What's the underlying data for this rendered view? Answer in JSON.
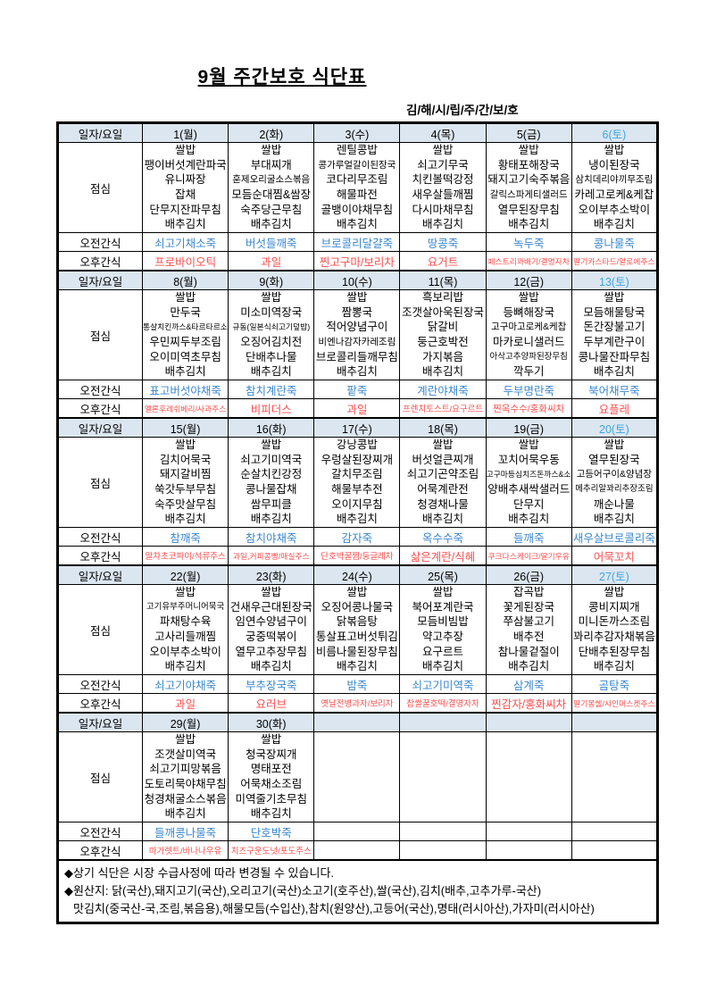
{
  "title": "9월 주간보호 식단표",
  "subtitle": "김/해/시/립/주/간/보/호",
  "row_labels": {
    "date": "일자/요일",
    "lunch": "점심",
    "morning_snack": "오전간식",
    "afternoon_snack": "오후간식"
  },
  "colors": {
    "header_bg": "#DCE6F1",
    "saturday_text": "#3FA7DC",
    "morning_snack_text": "#3A87D0",
    "afternoon_snack_text": "#FF4D4D"
  },
  "weeks": [
    {
      "days": [
        {
          "date": "1(월)",
          "saturday": false,
          "lunch": [
            "쌀밥",
            "팽이버섯계란파국",
            "유니짜장",
            "잡채",
            "단무지잔파무침",
            "배추김치"
          ],
          "morning_snack": "쇠고기채소죽",
          "afternoon_snack": "프로바이오틱"
        },
        {
          "date": "2(화)",
          "saturday": false,
          "lunch": [
            "쌀밥",
            "부대찌개",
            "훈제오리굴소스볶음",
            "모듬순대찜&쌈장",
            "숙주당근무침",
            "배추김치"
          ],
          "morning_snack": "버섯들깨죽",
          "afternoon_snack": "과일"
        },
        {
          "date": "3(수)",
          "saturday": false,
          "lunch": [
            "렌틸콩밥",
            "콩가루얼갈이된장국",
            "코다리무조림",
            "해물파전",
            "골뱅이야채무침",
            "배추김치"
          ],
          "morning_snack": "브로콜리달걀죽",
          "afternoon_snack": "찐고구마/보리차"
        },
        {
          "date": "4(목)",
          "saturday": false,
          "lunch": [
            "쌀밥",
            "쇠고기무국",
            "치킨볼떡강정",
            "새우살들깨찜",
            "다시마채무침",
            "배추김치"
          ],
          "morning_snack": "땅콩죽",
          "afternoon_snack": "요거트"
        },
        {
          "date": "5(금)",
          "saturday": false,
          "lunch": [
            "쌀밥",
            "황태포해장국",
            "돼지고기숙주볶음",
            "갈릭스파게티샐러드",
            "열무된장무침",
            "배추김치"
          ],
          "morning_snack": "녹두죽",
          "afternoon_snack": "페스트리꽈배기/결명자차"
        },
        {
          "date": "6(토)",
          "saturday": true,
          "lunch": [
            "쌀밥",
            "냉이된장국",
            "삼치데리야끼무조림",
            "카레고로케&케찹",
            "오이부추소박이",
            "배추김치"
          ],
          "morning_snack": "콩나물죽",
          "afternoon_snack": "딸기카스타드/알로에주스"
        }
      ]
    },
    {
      "days": [
        {
          "date": "8(월)",
          "saturday": false,
          "lunch": [
            "쌀밥",
            "만두국",
            "통살치킨까스&타르타르소스",
            "우민찌두부조림",
            "오이미역초무침",
            "배추김치"
          ],
          "morning_snack": "표고버섯야채죽",
          "afternoon_snack": "멜론후레쉬베리/사과주스"
        },
        {
          "date": "9(화)",
          "saturday": false,
          "lunch": [
            "쌀밥",
            "미소미역장국",
            "규동(일본식쇠고기덮밥)",
            "오징어김치전",
            "단배추나물",
            "배추김치"
          ],
          "morning_snack": "참치계란죽",
          "afternoon_snack": "비피더스"
        },
        {
          "date": "10(수)",
          "saturday": false,
          "lunch": [
            "쌀밥",
            "짬뽕국",
            "적어양념구이",
            "비엔나감자카레조림",
            "브로콜리들깨무침",
            "배추김치"
          ],
          "morning_snack": "팥죽",
          "afternoon_snack": "과일"
        },
        {
          "date": "11(목)",
          "saturday": false,
          "lunch": [
            "흑보리밥",
            "조갯살아욱된장국",
            "닭갈비",
            "둥근호박전",
            "가지볶음",
            "배추김치"
          ],
          "morning_snack": "계란야채죽",
          "afternoon_snack": "프렌치토스트/요구르트"
        },
        {
          "date": "12(금)",
          "saturday": false,
          "lunch": [
            "쌀밥",
            "등뼈해장국",
            "고구마고로케&케찹",
            "마카로니샐러드",
            "아삭고추양파된장무침",
            "깍두기"
          ],
          "morning_snack": "두부명란죽",
          "afternoon_snack": "찐옥수수/홍화씨차"
        },
        {
          "date": "13(토)",
          "saturday": true,
          "lunch": [
            "쌀밥",
            "모듬해물탕국",
            "돈간장불고기",
            "두부계란구이",
            "콩나물잔파무침",
            "배추김치"
          ],
          "morning_snack": "북어채무죽",
          "afternoon_snack": "요플레"
        }
      ]
    },
    {
      "days": [
        {
          "date": "15(월)",
          "saturday": false,
          "lunch": [
            "쌀밥",
            "김치어묵국",
            "돼지갈비찜",
            "쑥갓두부무침",
            "숙주맛살무침",
            "배추김치"
          ],
          "morning_snack": "참깨죽",
          "afternoon_snack": "말차초코파이/석류주스"
        },
        {
          "date": "16(화)",
          "saturday": false,
          "lunch": [
            "쌀밥",
            "쇠고기미역국",
            "순살치킨강정",
            "콩나물잡채",
            "쌈무피클",
            "배추김치"
          ],
          "morning_snack": "참치야채죽",
          "afternoon_snack": "과일,커피콩빵/매실주스"
        },
        {
          "date": "17(수)",
          "saturday": false,
          "lunch": [
            "강낭콩밥",
            "우렁살된장찌개",
            "갈치무조림",
            "해물부추전",
            "오이지무침",
            "배추김치"
          ],
          "morning_snack": "감자죽",
          "afternoon_snack": "단호박꿀찜/둥글레차"
        },
        {
          "date": "18(목)",
          "saturday": false,
          "lunch": [
            "쌀밥",
            "버섯얼큰찌개",
            "쇠고기곤약조림",
            "어묵계란전",
            "청경채나물",
            "배추김치"
          ],
          "morning_snack": "옥수수죽",
          "afternoon_snack": "삶은계란/식혜"
        },
        {
          "date": "19(금)",
          "saturday": false,
          "lunch": [
            "쌀밥",
            "꼬치어묵우동",
            "고구마등심치즈돈까스&소스",
            "양배추새싹샐러드",
            "단무지",
            "배추김치"
          ],
          "morning_snack": "들깨죽",
          "afternoon_snack": "쿠크다스케이크/딸기우유"
        },
        {
          "date": "20(토)",
          "saturday": true,
          "lunch": [
            "쌀밥",
            "열무된장국",
            "고등어구이&양념장",
            "메추리알꽈리추장조림",
            "깨순나물",
            "배추김치"
          ],
          "morning_snack": "새우살브로콜리죽",
          "afternoon_snack": "어묵꼬치"
        }
      ]
    },
    {
      "days": [
        {
          "date": "22(월)",
          "saturday": false,
          "lunch": [
            "쌀밥",
            "고기유부주머니어묵국",
            "파채탕수육",
            "고사리들깨찜",
            "오이부추소박이",
            "배추김치"
          ],
          "morning_snack": "쇠고기야채죽",
          "afternoon_snack": "과일"
        },
        {
          "date": "23(화)",
          "saturday": false,
          "lunch": [
            "쌀밥",
            "건새우근대된장국",
            "임연수양념구이",
            "궁중떡볶이",
            "열무고추장무침",
            "배추김치"
          ],
          "morning_snack": "부추장국죽",
          "afternoon_snack": "요러브"
        },
        {
          "date": "24(수)",
          "saturday": false,
          "lunch": [
            "쌀밥",
            "오징어콩나물국",
            "닭볶음탕",
            "통살표고버섯튀김",
            "비름나물된장무침",
            "배추김치"
          ],
          "morning_snack": "밤죽",
          "afternoon_snack": "옛날전병과자/보리차"
        },
        {
          "date": "25(목)",
          "saturday": false,
          "lunch": [
            "쌀밥",
            "북어포계란국",
            "모듬비빔밥",
            "약고추장",
            "요구르트",
            "배추김치"
          ],
          "morning_snack": "쇠고기미역죽",
          "afternoon_snack": "찹쌀꿀호떡/결명자차"
        },
        {
          "date": "26(금)",
          "saturday": false,
          "lunch": [
            "잡곡밥",
            "꽃게된장국",
            "쭈삼불고기",
            "배추전",
            "참나물겉절이",
            "배추김치"
          ],
          "morning_snack": "삼계죽",
          "afternoon_snack": "찐감자/홍화씨차"
        },
        {
          "date": "27(토)",
          "saturday": true,
          "lunch": [
            "쌀밥",
            "콩비지찌개",
            "미니돈까스조림",
            "꽈리추감자채볶음",
            "단배추된장무침",
            "배추김치"
          ],
          "morning_snack": "곰탕죽",
          "afternoon_snack": "딸기몽쉘/샤인머스켓주스"
        }
      ]
    },
    {
      "days": [
        {
          "date": "29(월)",
          "saturday": false,
          "lunch": [
            "쌀밥",
            "조갯살미역국",
            "쇠고기피망볶음",
            "도토리묵야채무침",
            "청경채굴소스볶음",
            "배추김치"
          ],
          "morning_snack": "들깨콩나물죽",
          "afternoon_snack": "마가렛트/바나나우유"
        },
        {
          "date": "30(화)",
          "saturday": false,
          "lunch": [
            "쌀밥",
            "청국장찌개",
            "명태포전",
            "어묵채소조림",
            "미역줄기초무침",
            "배추김치"
          ],
          "morning_snack": "단호박죽",
          "afternoon_snack": "치즈구운도넛/포도주스"
        },
        {
          "date": "",
          "saturday": false,
          "lunch": [
            "",
            "",
            "",
            "",
            "",
            ""
          ],
          "morning_snack": "",
          "afternoon_snack": ""
        },
        {
          "date": "",
          "saturday": false,
          "lunch": [
            "",
            "",
            "",
            "",
            "",
            ""
          ],
          "morning_snack": "",
          "afternoon_snack": ""
        },
        {
          "date": "",
          "saturday": false,
          "lunch": [
            "",
            "",
            "",
            "",
            "",
            ""
          ],
          "morning_snack": "",
          "afternoon_snack": ""
        },
        {
          "date": "",
          "saturday": false,
          "lunch": [
            "",
            "",
            "",
            "",
            "",
            ""
          ],
          "morning_snack": "",
          "afternoon_snack": ""
        }
      ]
    }
  ],
  "footnotes": [
    "◆상기 식단은 시장 수급사정에 따라 변경될 수 있습니다.",
    "◆원산지: 닭(국산),돼지고기(국산),오리고기(국산)소고기(호주산),쌀(국산),김치(배추,고추가루-국산)",
    "맛김치(중국산-국,조림,볶음용),해물모듬(수입산),참치(원양산),고등어(국산),명태(러시아산),가자미(러시아산)"
  ]
}
